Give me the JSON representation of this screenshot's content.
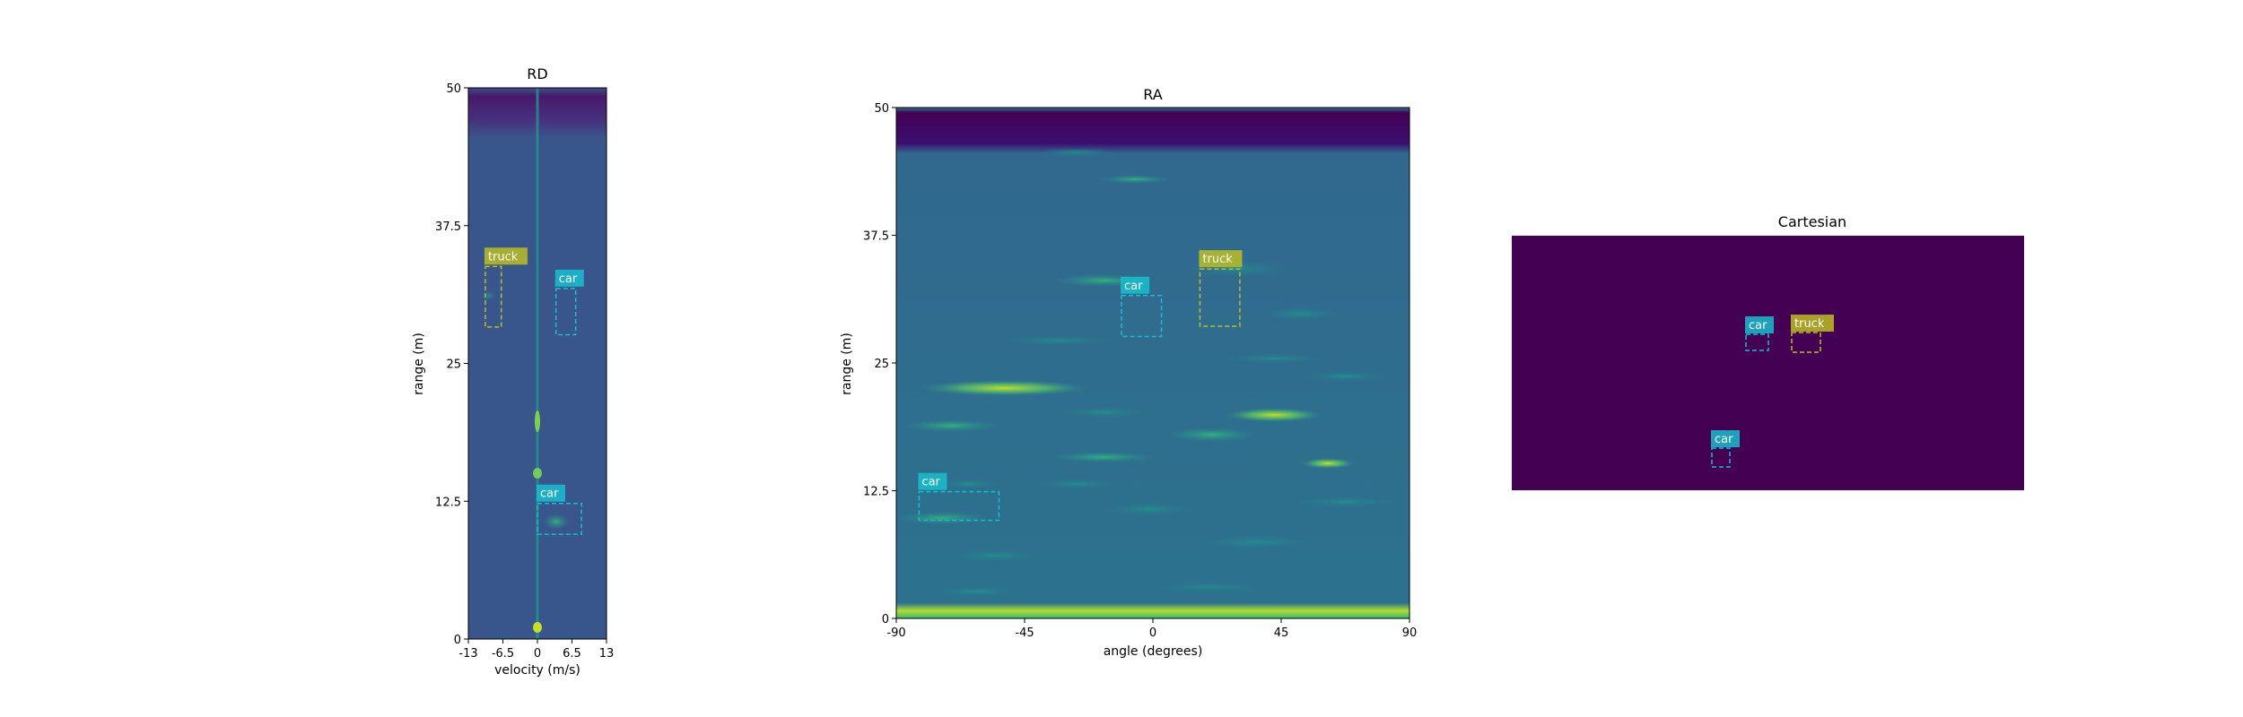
{
  "chart_data": [
    {
      "type": "heatmap",
      "title": "RD",
      "xlabel": "velocity (m/s)",
      "ylabel": "range (m)",
      "xlim": [
        -13,
        13
      ],
      "ylim": [
        0,
        50
      ],
      "xticks": [
        -13,
        -6.5,
        0,
        6.5,
        13
      ],
      "xtick_labels": [
        "-13",
        "-6.5",
        "0",
        "6.5",
        "13"
      ],
      "yticks": [
        0,
        12.5,
        25,
        37.5,
        50
      ],
      "ytick_labels": [
        "0",
        "12.5",
        "25",
        "37.5",
        "50"
      ],
      "colormap": "viridis",
      "grid": false,
      "boxes": [
        {
          "label": "truck",
          "x": [
            -9.8,
            -6.8
          ],
          "y": [
            28.3,
            33.8
          ],
          "color": "#bcbd22"
        },
        {
          "label": "car",
          "x": [
            3.5,
            7.2
          ],
          "y": [
            27.6,
            31.8
          ],
          "color": "#17becf"
        },
        {
          "label": "car",
          "x": [
            0,
            8.3
          ],
          "y": [
            9.5,
            12.3
          ],
          "color": "#17becf"
        }
      ]
    },
    {
      "type": "heatmap",
      "title": "RA",
      "xlabel": "angle (degrees)",
      "ylabel": "range (m)",
      "xlim": [
        -90,
        90
      ],
      "ylim": [
        0,
        50
      ],
      "xticks": [
        -90,
        -45,
        0,
        45,
        90
      ],
      "xtick_labels": [
        "-90",
        "-45",
        "0",
        "45",
        "90"
      ],
      "yticks": [
        0,
        12.5,
        25,
        37.5,
        50
      ],
      "ytick_labels": [
        "0",
        "12.5",
        "25",
        "37.5",
        "50"
      ],
      "colormap": "viridis",
      "grid": false,
      "boxes": [
        {
          "label": "truck",
          "x": [
            16.5,
            30.5
          ],
          "y": [
            28.6,
            34.2
          ],
          "color": "#bcbd22"
        },
        {
          "label": "car",
          "x": [
            -11,
            3
          ],
          "y": [
            27.6,
            31.6
          ],
          "color": "#17becf"
        },
        {
          "label": "car",
          "x": [
            -82,
            -54
          ],
          "y": [
            9.6,
            12.4
          ],
          "color": "#17becf"
        }
      ]
    },
    {
      "type": "heatmap",
      "title": "Cartesian",
      "background": "#440154",
      "axes": false,
      "boxes": [
        {
          "label": "car",
          "color": "#17becf"
        },
        {
          "label": "truck",
          "color": "#bcbd22"
        },
        {
          "label": "car",
          "color": "#17becf"
        }
      ]
    }
  ]
}
